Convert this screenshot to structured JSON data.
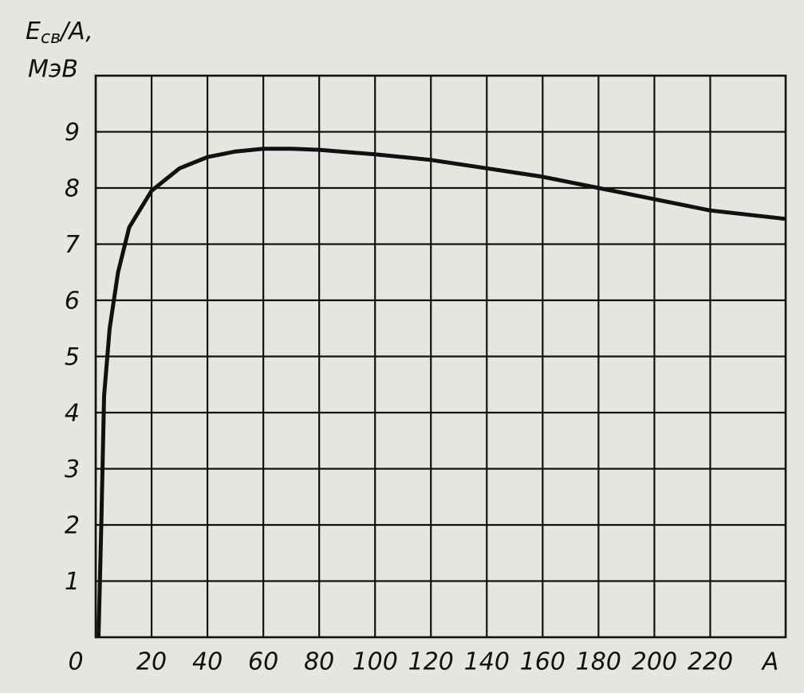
{
  "chart_data": {
    "type": "line",
    "ylabel": {
      "symbol": "E",
      "subscript": "св",
      "rest": "/A,",
      "unit": "МэВ"
    },
    "xlabel": "A",
    "x": [
      1,
      2,
      3,
      5,
      8,
      12,
      20,
      30,
      40,
      50,
      60,
      70,
      80,
      100,
      120,
      140,
      160,
      180,
      200,
      220,
      247
    ],
    "series": [
      {
        "color": "#111111",
        "values": [
          0,
          2,
          4.3,
          5.5,
          6.5,
          7.3,
          7.95,
          8.35,
          8.55,
          8.65,
          8.7,
          8.7,
          8.68,
          8.6,
          8.5,
          8.35,
          8.2,
          8.0,
          7.8,
          7.6,
          7.45
        ]
      }
    ],
    "xlim": [
      0,
      247
    ],
    "ylim": [
      0,
      10
    ],
    "xticks": [
      0,
      20,
      40,
      60,
      80,
      100,
      120,
      140,
      160,
      180,
      200,
      220
    ],
    "yticks": [
      1,
      2,
      3,
      4,
      5,
      6,
      7,
      8,
      9
    ],
    "grid": true
  }
}
